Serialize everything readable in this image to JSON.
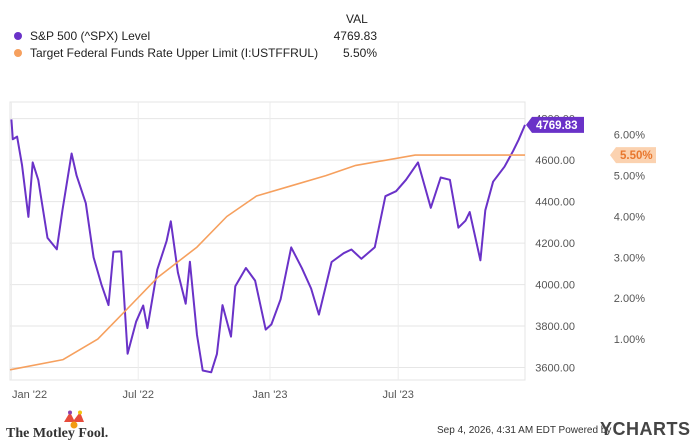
{
  "legend": {
    "header": "VAL",
    "items": [
      {
        "name": "S&P 500 (^SPX) Level",
        "value": "4769.83",
        "color": "#6a32c8"
      },
      {
        "name": "Target Federal Funds Rate Upper Limit (I:USTFFRUL)",
        "value": "5.50%",
        "color": "#f6a05e"
      }
    ]
  },
  "footer": {
    "brand": "The Motley Fool.",
    "timestamp": "Sep 4, 2026, 4:31 AM EDT  Powered by",
    "ycharts": "YCHARTS"
  },
  "chart_data": {
    "type": "line",
    "x_ticks": [
      "Jan '22",
      "Jul '22",
      "Jan '23",
      "Jul '23"
    ],
    "y_left_ticks": [
      "3600.00",
      "3800.00",
      "4000.00",
      "4200.00",
      "4400.00",
      "4600.00",
      "4800.00"
    ],
    "y_right_ticks": [
      "1.00%",
      "2.00%",
      "3.00%",
      "4.00%",
      "5.00%",
      "6.00%"
    ],
    "y_left_range": [
      3540,
      4880
    ],
    "y_right_range": [
      0.0,
      6.8
    ],
    "x_range": [
      "2022-01-01",
      "2023-12-29"
    ],
    "series": [
      {
        "name": "S&P 500 (^SPX) Level",
        "axis": "left",
        "color": "#6a32c8",
        "end_label": "4769.83",
        "points": [
          [
            "2022-01-03",
            4796
          ],
          [
            "2022-01-05",
            4700
          ],
          [
            "2022-01-11",
            4713
          ],
          [
            "2022-01-18",
            4577
          ],
          [
            "2022-01-27",
            4326
          ],
          [
            "2022-02-02",
            4589
          ],
          [
            "2022-02-10",
            4504
          ],
          [
            "2022-02-23",
            4225
          ],
          [
            "2022-03-08",
            4170
          ],
          [
            "2022-03-16",
            4357
          ],
          [
            "2022-03-29",
            4632
          ],
          [
            "2022-04-05",
            4525
          ],
          [
            "2022-04-18",
            4392
          ],
          [
            "2022-04-29",
            4131
          ],
          [
            "2022-05-10",
            4001
          ],
          [
            "2022-05-20",
            3901
          ],
          [
            "2022-05-27",
            4158
          ],
          [
            "2022-06-07",
            4160
          ],
          [
            "2022-06-16",
            3667
          ],
          [
            "2022-06-28",
            3821
          ],
          [
            "2022-07-08",
            3899
          ],
          [
            "2022-07-14",
            3790
          ],
          [
            "2022-07-28",
            4072
          ],
          [
            "2022-08-10",
            4210
          ],
          [
            "2022-08-16",
            4305
          ],
          [
            "2022-08-26",
            4058
          ],
          [
            "2022-09-06",
            3908
          ],
          [
            "2022-09-12",
            4110
          ],
          [
            "2022-09-22",
            3757
          ],
          [
            "2022-09-30",
            3586
          ],
          [
            "2022-10-12",
            3577
          ],
          [
            "2022-10-20",
            3665
          ],
          [
            "2022-10-28",
            3901
          ],
          [
            "2022-11-09",
            3749
          ],
          [
            "2022-11-15",
            3992
          ],
          [
            "2022-11-30",
            4080
          ],
          [
            "2022-12-13",
            4019
          ],
          [
            "2022-12-28",
            3783
          ],
          [
            "2023-01-05",
            3808
          ],
          [
            "2023-01-18",
            3929
          ],
          [
            "2023-02-02",
            4179
          ],
          [
            "2023-02-17",
            4079
          ],
          [
            "2023-03-02",
            3981
          ],
          [
            "2023-03-13",
            3855
          ],
          [
            "2023-03-31",
            4109
          ],
          [
            "2023-04-17",
            4151
          ],
          [
            "2023-04-28",
            4169
          ],
          [
            "2023-05-12",
            4124
          ],
          [
            "2023-05-31",
            4180
          ],
          [
            "2023-06-15",
            4426
          ],
          [
            "2023-06-30",
            4450
          ],
          [
            "2023-07-14",
            4505
          ],
          [
            "2023-07-31",
            4589
          ],
          [
            "2023-08-10",
            4468
          ],
          [
            "2023-08-18",
            4370
          ],
          [
            "2023-09-01",
            4516
          ],
          [
            "2023-09-14",
            4505
          ],
          [
            "2023-09-26",
            4274
          ],
          [
            "2023-10-06",
            4308
          ],
          [
            "2023-10-12",
            4350
          ],
          [
            "2023-10-27",
            4117
          ],
          [
            "2023-11-03",
            4358
          ],
          [
            "2023-11-14",
            4496
          ],
          [
            "2023-11-30",
            4568
          ],
          [
            "2023-12-12",
            4643
          ],
          [
            "2023-12-20",
            4698
          ],
          [
            "2023-12-29",
            4769.83
          ]
        ]
      },
      {
        "name": "Target Federal Funds Rate Upper Limit (I:USTFFRUL)",
        "axis": "right",
        "color": "#f6a05e",
        "end_label": "5.50%",
        "points": [
          [
            "2022-01-01",
            0.25
          ],
          [
            "2022-03-17",
            0.5
          ],
          [
            "2022-05-05",
            1.0
          ],
          [
            "2022-06-16",
            1.75
          ],
          [
            "2022-07-28",
            2.5
          ],
          [
            "2022-09-22",
            3.25
          ],
          [
            "2022-11-03",
            4.0
          ],
          [
            "2022-12-15",
            4.5
          ],
          [
            "2023-02-02",
            4.75
          ],
          [
            "2023-03-23",
            5.0
          ],
          [
            "2023-05-04",
            5.25
          ],
          [
            "2023-07-27",
            5.5
          ],
          [
            "2023-12-29",
            5.5
          ]
        ]
      }
    ]
  }
}
